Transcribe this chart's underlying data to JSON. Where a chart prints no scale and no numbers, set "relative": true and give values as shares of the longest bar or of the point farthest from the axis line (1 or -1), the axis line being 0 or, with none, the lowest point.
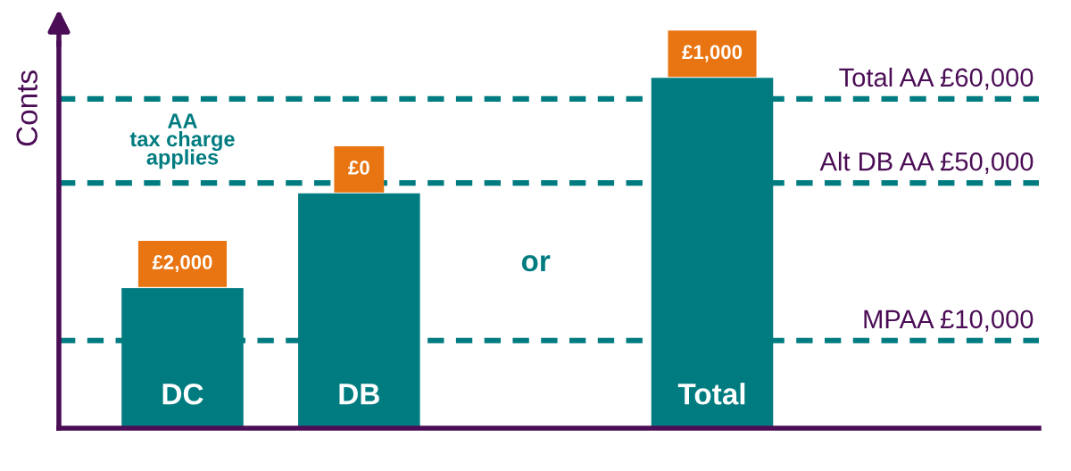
{
  "chart_data": {
    "type": "bar",
    "relative": true,
    "ylabel": "Conts",
    "categories": [
      "DC",
      "DB",
      null,
      "Total"
    ],
    "series": [
      {
        "color": "#007c80",
        "values": [
          0.4,
          0.67,
          null,
          1
        ]
      }
    ],
    "ref_lines": [
      {
        "axis": "y",
        "value": 0.94,
        "label": "Total AA £60,000",
        "color": "#007c80",
        "line_style": "dashed"
      },
      {
        "axis": "y",
        "value": 0.7,
        "label": "Alt DB AA £50,000",
        "color": "#007c80",
        "line_style": "dashed"
      },
      {
        "axis": "y",
        "value": 0.25,
        "label": "MPAA £10,000",
        "color": "#007c80",
        "line_style": "dashed"
      }
    ],
    "annotations": [
      "AA\ntax charge\napplies",
      {
        "text": "£2,000",
        "x": "DC",
        "y": 0.4
      },
      {
        "text": "£0",
        "x": "DB",
        "y": 0.67
      },
      {
        "text": "£1,000",
        "x": "Total",
        "y": 1
      },
      "or"
    ],
    "legend": false
  }
}
